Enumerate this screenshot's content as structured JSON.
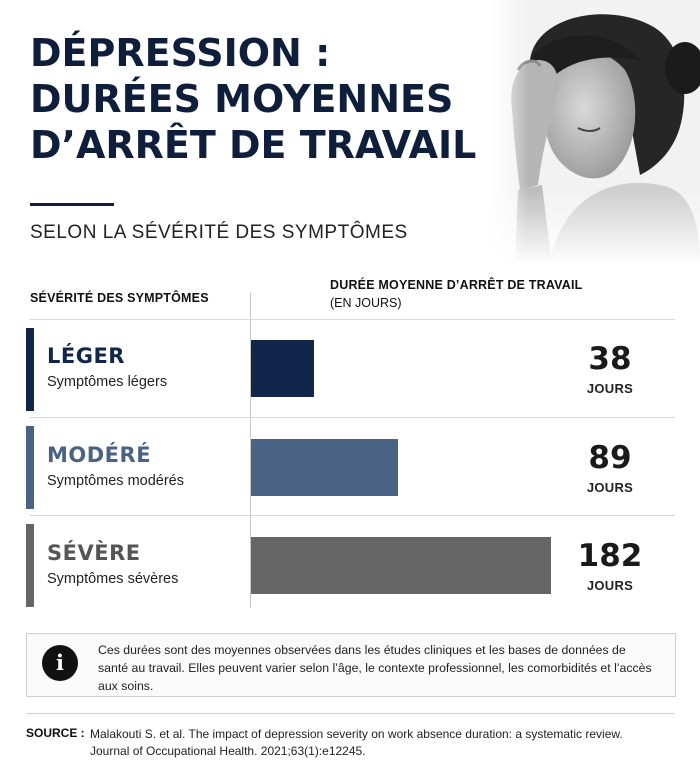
{
  "header": {
    "title_lines": [
      "DÉPRESSION :",
      "DURÉES MOYENNES",
      "D’ARRÊT DE TRAVAIL"
    ],
    "subtitle": "SELON LA SÉVÉRITÉ DES SYMPTÔMES"
  },
  "table": {
    "left_header": "SÉVÉRITÉ DES SYMPTÔMES",
    "right_header": "DURÉE MOYENNE D’ARRÊT DE TRAVAIL",
    "right_header_unit": "(EN JOURS)"
  },
  "rows": [
    {
      "label": "LÉGER",
      "sub": "Symptômes légers",
      "value": "38",
      "unit": "JOURS"
    },
    {
      "label": "MODÉRÉ",
      "sub": "Symptômes modérés",
      "value": "89",
      "unit": "JOURS"
    },
    {
      "label": "SÉVÈRE",
      "sub": "Symptômes sévères",
      "value": "182",
      "unit": "JOURS"
    }
  ],
  "chart_data": {
    "type": "bar",
    "categories": [
      "LÉGER",
      "MODÉRÉ",
      "SÉVÈRE"
    ],
    "values": [
      38,
      89,
      182
    ],
    "colors": [
      "#11264a",
      "#4a6283",
      "#666666"
    ],
    "xlim": [
      0,
      188
    ],
    "grid": false
  },
  "info": {
    "icon": "info-icon",
    "text": "Ces durées sont des moyennes observées dans les études cliniques et les bases de données de santé au travail. Elles peuvent varier selon l’âge, le contexte professionnel, les comorbidités et l’accès aux soins."
  },
  "source": {
    "label": "SOURCE :",
    "text": "Malakouti S. et al. The impact of depression severity on work absence duration: a systematic review. Journal of Occupational Health. 2021;63(1):e12245."
  }
}
